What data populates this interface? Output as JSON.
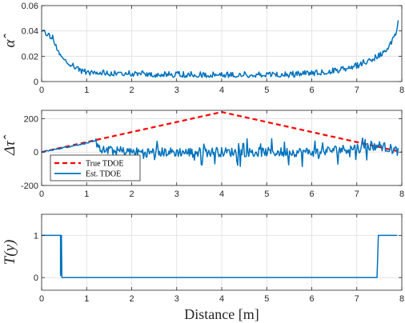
{
  "chart_data": [
    {
      "type": "line",
      "ylabel": "α̂",
      "xlim": [
        0,
        8
      ],
      "ylim": [
        0,
        0.06
      ],
      "xticks": [
        "0",
        "1",
        "2",
        "3",
        "4",
        "5",
        "6",
        "7",
        "8"
      ],
      "yticks": [
        "0",
        "0.02",
        "0.04",
        "0.06"
      ],
      "grid": true,
      "series": [
        {
          "color": "#0072BD",
          "noise": 0.003,
          "points": [
            [
              0,
              0.04
            ],
            [
              0.12,
              0.037
            ],
            [
              0.25,
              0.034
            ],
            [
              0.4,
              0.022
            ],
            [
              0.6,
              0.014
            ],
            [
              0.8,
              0.009
            ],
            [
              1.0,
              0.007
            ],
            [
              1.5,
              0.006
            ],
            [
              2.0,
              0.006
            ],
            [
              2.5,
              0.005
            ],
            [
              3.0,
              0.005
            ],
            [
              3.5,
              0.005
            ],
            [
              4.0,
              0.005
            ],
            [
              4.5,
              0.005
            ],
            [
              5.0,
              0.005
            ],
            [
              5.5,
              0.005
            ],
            [
              6.0,
              0.006
            ],
            [
              6.5,
              0.008
            ],
            [
              7.0,
              0.012
            ],
            [
              7.3,
              0.017
            ],
            [
              7.5,
              0.02
            ],
            [
              7.7,
              0.027
            ],
            [
              7.85,
              0.036
            ],
            [
              7.95,
              0.05
            ]
          ]
        }
      ]
    },
    {
      "type": "line",
      "ylabel": "Δτ̂",
      "xlim": [
        0,
        8
      ],
      "ylim": [
        -200,
        250
      ],
      "xticks": [
        "0",
        "1",
        "2",
        "3",
        "4",
        "5",
        "6",
        "7",
        "8"
      ],
      "yticks": [
        "-200",
        "0",
        "200"
      ],
      "grid": true,
      "legend": {
        "location": "bottom-left",
        "entries": [
          "True TDOE",
          "Est. TDOE"
        ]
      },
      "series": [
        {
          "name": "True TDOE",
          "color": "#FF0000",
          "dash": "6,4",
          "points": [
            [
              0,
              0
            ],
            [
              4,
              240
            ],
            [
              8,
              0
            ]
          ]
        },
        {
          "name": "Est. TDOE",
          "color": "#0072BD",
          "noise": 28,
          "points": [
            [
              0,
              0
            ],
            [
              1.2,
              65
            ],
            [
              1.35,
              10
            ],
            [
              2,
              0
            ],
            [
              3,
              0
            ],
            [
              4,
              0
            ],
            [
              5,
              0
            ],
            [
              6,
              0
            ],
            [
              6.8,
              20
            ],
            [
              7.5,
              40
            ],
            [
              8,
              0
            ]
          ]
        }
      ]
    },
    {
      "type": "line",
      "ylabel": "T(y)",
      "xlabel": "Distance [m]",
      "xlim": [
        0,
        8
      ],
      "ylim": [
        -0.3,
        1.5
      ],
      "xticks": [
        "0",
        "1",
        "2",
        "3",
        "4",
        "5",
        "6",
        "7",
        "8"
      ],
      "yticks": [
        "0",
        "1"
      ],
      "grid": true,
      "series": [
        {
          "color": "#0072BD",
          "points": [
            [
              0,
              1
            ],
            [
              0.42,
              1
            ],
            [
              0.42,
              0.05
            ],
            [
              0.44,
              1
            ],
            [
              0.45,
              0
            ],
            [
              7.45,
              0
            ],
            [
              7.48,
              1
            ],
            [
              7.9,
              1
            ]
          ]
        }
      ]
    }
  ]
}
